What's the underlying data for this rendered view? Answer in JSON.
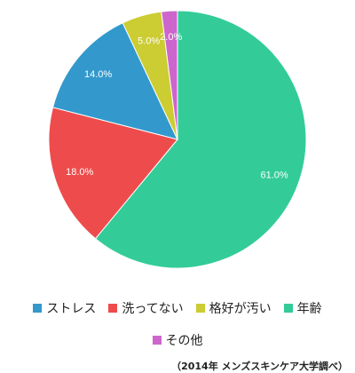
{
  "chart_data": {
    "type": "pie",
    "categories": [
      "ストレス",
      "洗ってない",
      "格好が汚い",
      "年齢",
      "その他"
    ],
    "values": [
      14.0,
      18.0,
      5.0,
      61.0,
      2.0
    ],
    "data_labels": [
      "14.0%",
      "18.0%",
      "5.0%",
      "61.0%",
      "2.0%"
    ],
    "colors": [
      "#3399cc",
      "#ee4c4c",
      "#cccc33",
      "#33cc99",
      "#cc66cc"
    ],
    "title": "",
    "legend_placement": "bottom"
  },
  "source_note": "（2014年 メンズスキンケア大学調べ）"
}
